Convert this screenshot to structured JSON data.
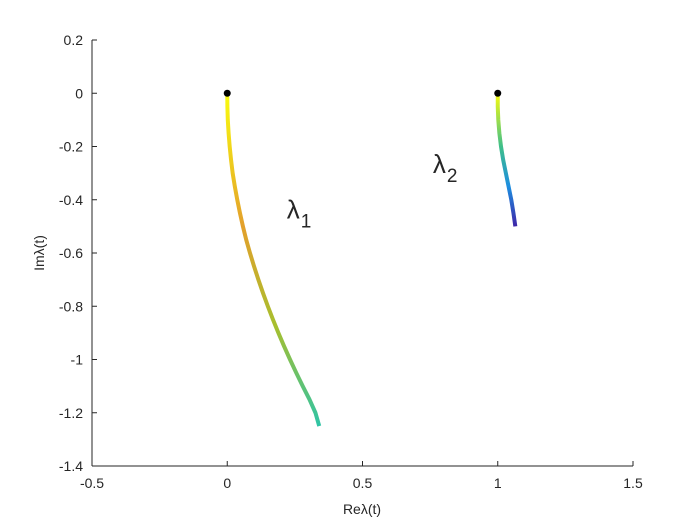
{
  "chart_data": {
    "type": "line",
    "xlabel": "Reλ(t)",
    "ylabel": "Imλ(t)",
    "xlim": [
      -0.5,
      1.5
    ],
    "ylim": [
      -1.4,
      0.2
    ],
    "xticks": [
      -0.5,
      0,
      0.5,
      1,
      1.5
    ],
    "xtick_labels": [
      "-0.5",
      "0",
      "0.5",
      "1",
      "1.5"
    ],
    "yticks": [
      0.2,
      0,
      -0.2,
      -0.4,
      -0.6,
      -0.8,
      -1,
      -1.2,
      -1.4
    ],
    "ytick_labels": [
      "0.2",
      "0",
      "-0.2",
      "-0.4",
      "-0.6",
      "-0.8",
      "-1",
      "-1.2",
      "-1.4"
    ],
    "grid": false,
    "box": "left-bottom axes only",
    "series": [
      {
        "points": [
          [
            0,
            0
          ],
          [
            0.0005,
            -0.05
          ],
          [
            0.002,
            -0.1
          ],
          [
            0.005,
            -0.15
          ],
          [
            0.009,
            -0.2
          ],
          [
            0.014,
            -0.25
          ],
          [
            0.02,
            -0.3
          ],
          [
            0.028,
            -0.35
          ],
          [
            0.037,
            -0.4
          ],
          [
            0.047,
            -0.45
          ],
          [
            0.058,
            -0.5
          ],
          [
            0.07,
            -0.55
          ],
          [
            0.084,
            -0.6
          ],
          [
            0.099,
            -0.65
          ],
          [
            0.115,
            -0.7
          ],
          [
            0.132,
            -0.75
          ],
          [
            0.15,
            -0.8
          ],
          [
            0.169,
            -0.85
          ],
          [
            0.189,
            -0.9
          ],
          [
            0.21,
            -0.95
          ],
          [
            0.232,
            -1.0
          ],
          [
            0.255,
            -1.05
          ],
          [
            0.279,
            -1.1
          ],
          [
            0.304,
            -1.15
          ],
          [
            0.326,
            -1.2
          ],
          [
            0.34,
            -1.25
          ]
        ],
        "color_start": "#f9fb0e",
        "color_mid": "#e3a02c",
        "color_mid2": "#a7bf2e",
        "color_end": "#2ec4a6"
      },
      {
        "points": [
          [
            1.0,
            0
          ],
          [
            1.0,
            -0.05
          ],
          [
            1.002,
            -0.1
          ],
          [
            1.006,
            -0.15
          ],
          [
            1.012,
            -0.2
          ],
          [
            1.02,
            -0.25
          ],
          [
            1.03,
            -0.3
          ],
          [
            1.04,
            -0.35
          ],
          [
            1.05,
            -0.4
          ],
          [
            1.058,
            -0.45
          ],
          [
            1.065,
            -0.5
          ]
        ],
        "color_start": "#f9fb0e",
        "color_mid": "#3fbf8a",
        "color_mid2": "#1d8ee0",
        "color_end": "#3e26a8"
      }
    ],
    "start_markers": [
      [
        0,
        0
      ],
      [
        1,
        0
      ]
    ],
    "annotations": [
      {
        "text": "λ",
        "sub": "1",
        "x": 0.22,
        "y": -0.47
      },
      {
        "text": "λ",
        "sub": "2",
        "x": 0.76,
        "y": -0.3
      }
    ]
  }
}
